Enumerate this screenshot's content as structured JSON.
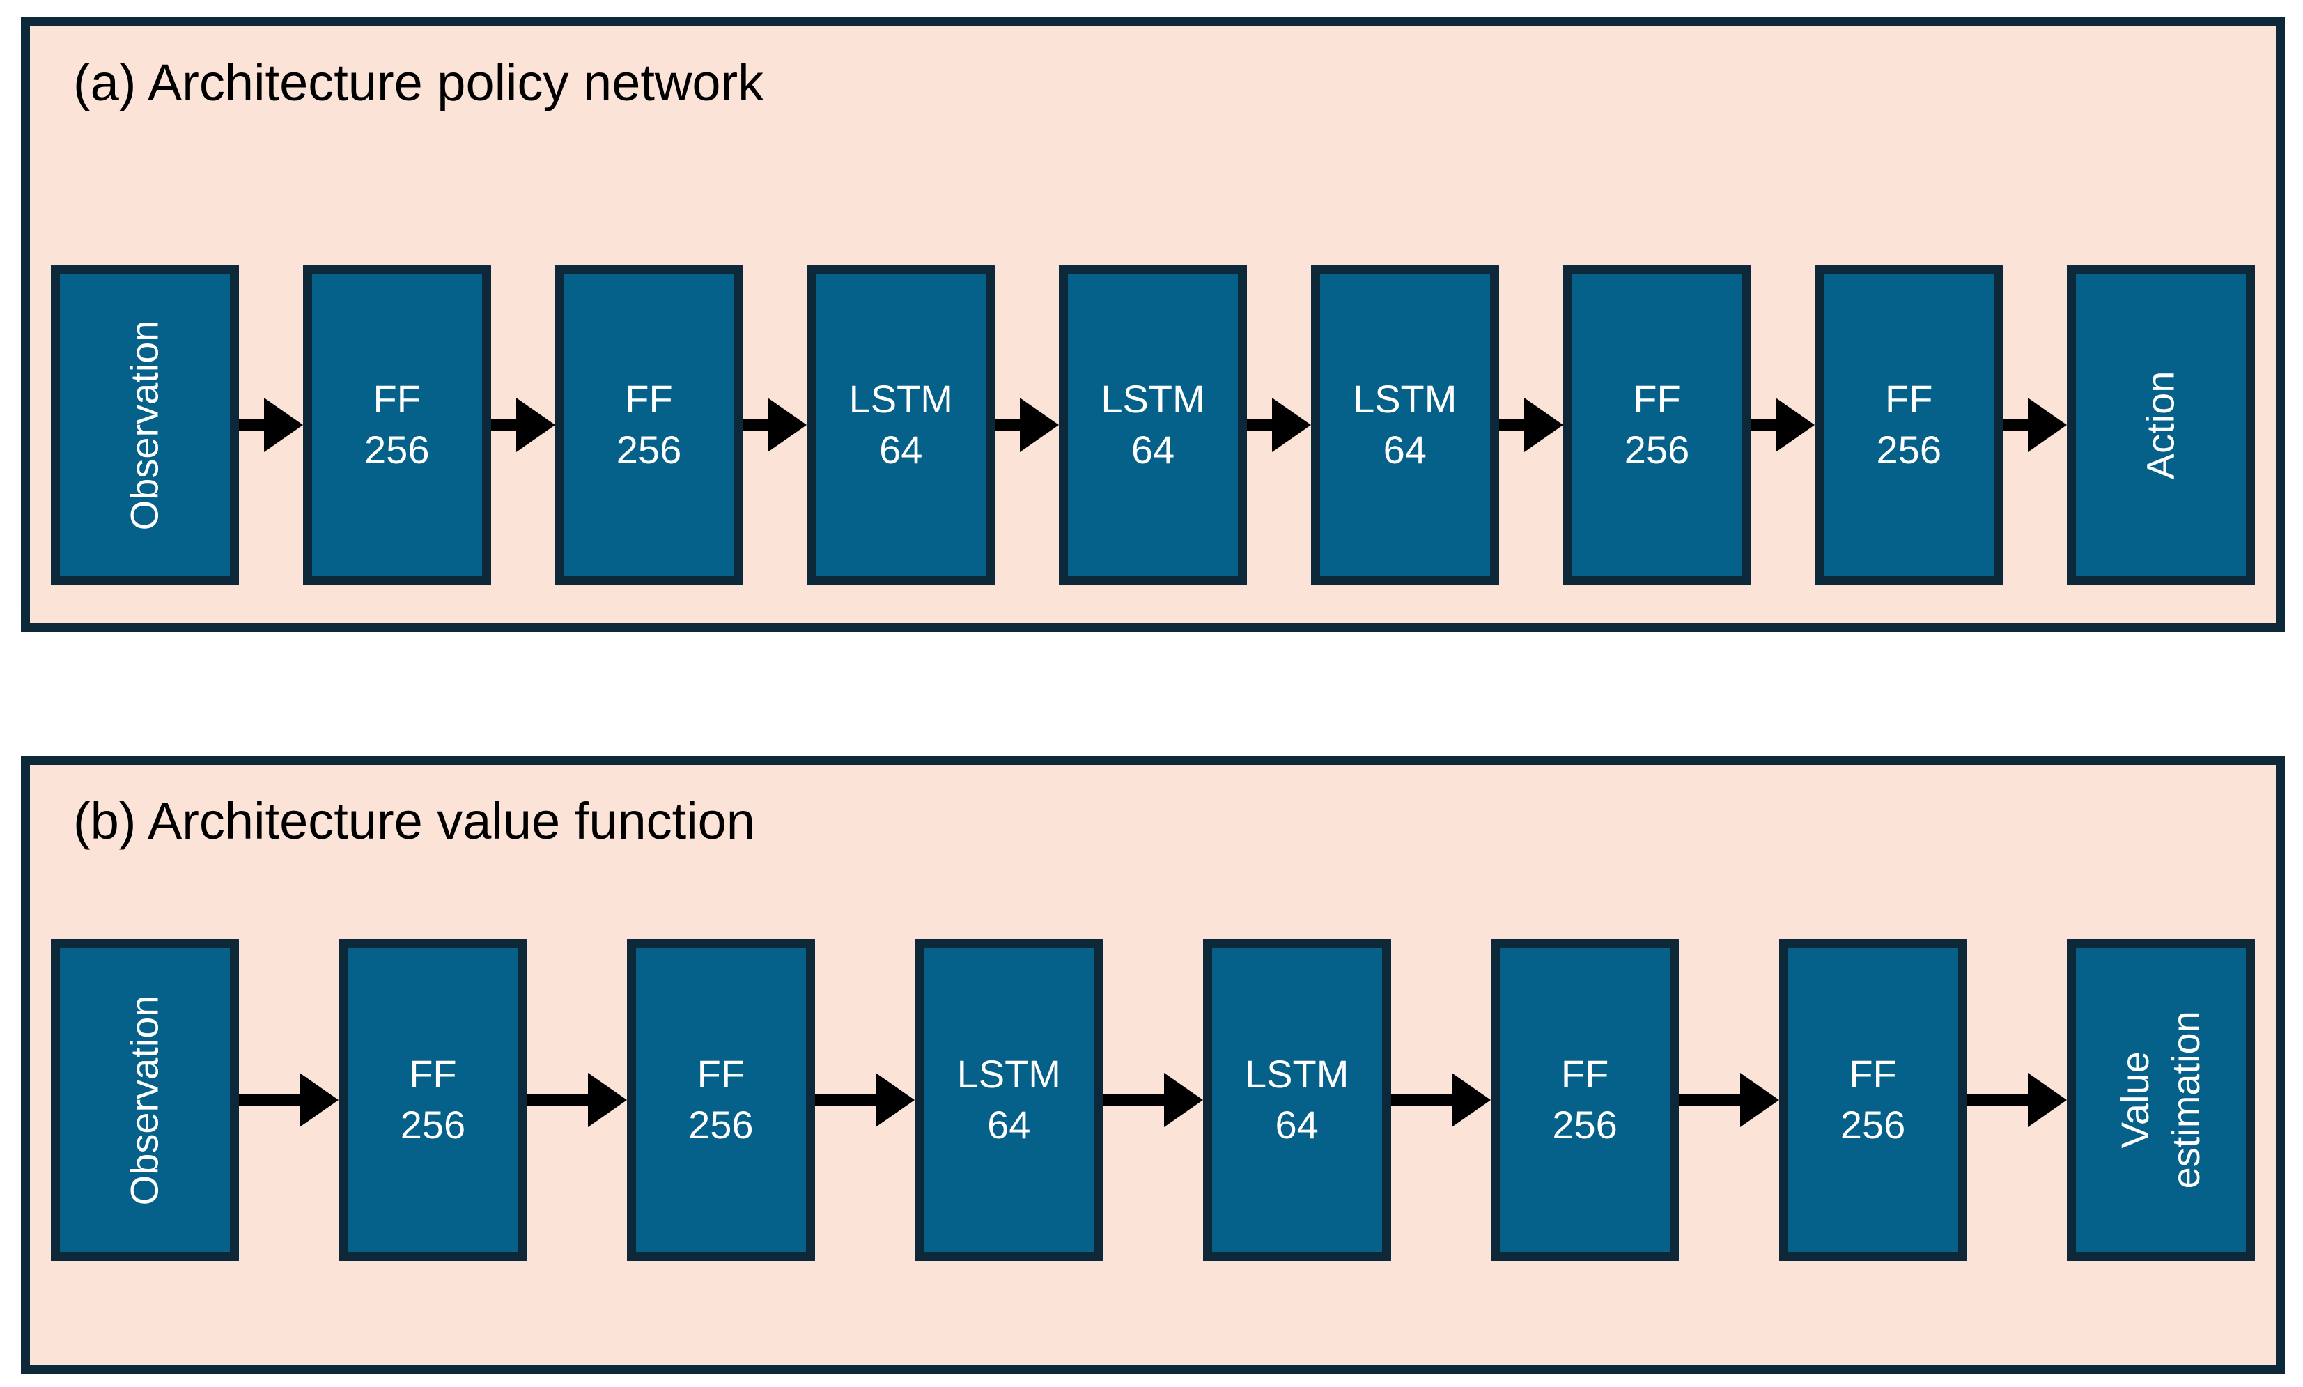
{
  "colors": {
    "page_background": "#ffffff",
    "panel_background": "#fce3d7",
    "panel_border": "#0d2939",
    "node_fill": "#05608a",
    "node_border": "#0d2939",
    "node_text": "#ffffff",
    "title_text": "#000000",
    "arrow": "#000000"
  },
  "panels": [
    {
      "id": "a",
      "title": "(a) Architecture policy network",
      "nodes": [
        {
          "lines": [
            "Observation"
          ],
          "orientation": "vertical"
        },
        {
          "lines": [
            "FF",
            "256"
          ],
          "orientation": "horizontal"
        },
        {
          "lines": [
            "FF",
            "256"
          ],
          "orientation": "horizontal"
        },
        {
          "lines": [
            "LSTM",
            "64"
          ],
          "orientation": "horizontal"
        },
        {
          "lines": [
            "LSTM",
            "64"
          ],
          "orientation": "horizontal"
        },
        {
          "lines": [
            "LSTM",
            "64"
          ],
          "orientation": "horizontal"
        },
        {
          "lines": [
            "FF",
            "256"
          ],
          "orientation": "horizontal"
        },
        {
          "lines": [
            "FF",
            "256"
          ],
          "orientation": "horizontal"
        },
        {
          "lines": [
            "Action"
          ],
          "orientation": "vertical"
        }
      ]
    },
    {
      "id": "b",
      "title": "(b) Architecture value function",
      "nodes": [
        {
          "lines": [
            "Observation"
          ],
          "orientation": "vertical"
        },
        {
          "lines": [
            "FF",
            "256"
          ],
          "orientation": "horizontal"
        },
        {
          "lines": [
            "FF",
            "256"
          ],
          "orientation": "horizontal"
        },
        {
          "lines": [
            "LSTM",
            "64"
          ],
          "orientation": "horizontal"
        },
        {
          "lines": [
            "LSTM",
            "64"
          ],
          "orientation": "horizontal"
        },
        {
          "lines": [
            "FF",
            "256"
          ],
          "orientation": "horizontal"
        },
        {
          "lines": [
            "FF",
            "256"
          ],
          "orientation": "horizontal"
        },
        {
          "lines": [
            "Value",
            "estimation"
          ],
          "orientation": "vertical"
        }
      ]
    }
  ]
}
